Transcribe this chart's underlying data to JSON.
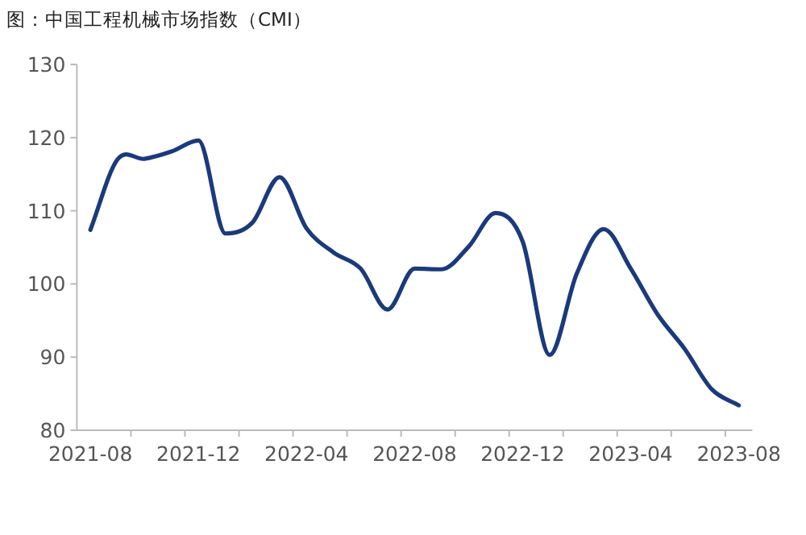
{
  "chart_data": {
    "type": "line",
    "title": "图：中国工程机械市场指数（CMI）",
    "categories": [
      "2021-08",
      null,
      null,
      null,
      "2021-12",
      null,
      null,
      null,
      "2022-04",
      null,
      null,
      null,
      "2022-08",
      null,
      null,
      null,
      "2022-12",
      null,
      null,
      null,
      "2023-04",
      null,
      null,
      null,
      "2023-08"
    ],
    "series": [
      {
        "color": "#1b3a7c",
        "values": [
          107.4,
          117.0,
          117.1,
          118.1,
          119.6,
          106.9,
          108.4,
          114.6,
          107.6,
          104.3,
          102.1,
          96.5,
          102.1,
          102.0,
          105.1,
          109.7,
          105.8,
          90.3,
          101.4,
          107.5,
          102.1,
          95.8,
          91.1,
          85.6,
          83.4
        ]
      }
    ],
    "ylim": [
      80,
      130
    ],
    "yticks": [
      80,
      90,
      100,
      110,
      120,
      130
    ],
    "grid": false,
    "marker": "none",
    "line_style": "solid"
  }
}
